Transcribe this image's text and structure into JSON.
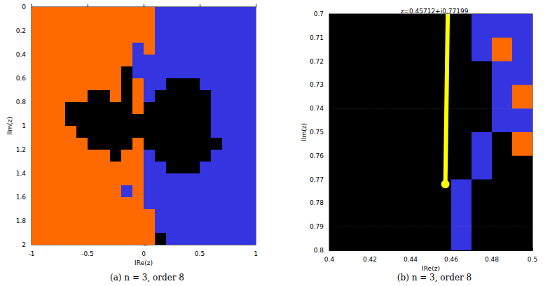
{
  "chart_data": [
    {
      "type": "heatmap",
      "caption": "(a) n = 3, order 8",
      "x_label": "IRe(z)",
      "y_label": "IIm(z)",
      "xlim": [
        -1,
        1
      ],
      "ylim": [
        0,
        2
      ],
      "xticks": [
        -1,
        -0.5,
        0,
        0.5,
        1
      ],
      "yticks": [
        0,
        0.2,
        0.4,
        0.6,
        0.8,
        1,
        1.2,
        1.4,
        1.6,
        1.8,
        2
      ],
      "colors": [
        "#ff6a00",
        "#3434e0",
        "#000000"
      ],
      "cells": {
        "x_edges": [
          -1,
          -0.9,
          -0.8,
          -0.7,
          -0.6,
          -0.5,
          -0.4,
          -0.3,
          -0.2,
          -0.1,
          0,
          0.1,
          0.2,
          0.3,
          0.4,
          0.5,
          0.6,
          0.7,
          0.8,
          0.9,
          1
        ],
        "y_edges": [
          0,
          0.1,
          0.2,
          0.3,
          0.4,
          0.5,
          0.6,
          0.7,
          0.8,
          0.9,
          1,
          1.1,
          1.2,
          1.3,
          1.4,
          1.5,
          1.6,
          1.7,
          1.8,
          1.9,
          2
        ],
        "values": [
          [
            0,
            0,
            0,
            0,
            0,
            0,
            0,
            0,
            0,
            0,
            0,
            1,
            1,
            1,
            1,
            1,
            1,
            1,
            1,
            1
          ],
          [
            0,
            0,
            0,
            0,
            0,
            0,
            0,
            0,
            0,
            0,
            0,
            1,
            1,
            1,
            1,
            1,
            1,
            1,
            1,
            1
          ],
          [
            0,
            0,
            0,
            0,
            0,
            0,
            0,
            0,
            0,
            0,
            0,
            1,
            1,
            1,
            1,
            1,
            1,
            1,
            1,
            1
          ],
          [
            0,
            0,
            0,
            0,
            0,
            0,
            0,
            0,
            0,
            1,
            0,
            1,
            1,
            1,
            1,
            1,
            1,
            1,
            1,
            1
          ],
          [
            0,
            0,
            0,
            0,
            0,
            0,
            0,
            0,
            0,
            1,
            1,
            1,
            1,
            1,
            1,
            1,
            1,
            1,
            1,
            1
          ],
          [
            0,
            0,
            0,
            0,
            0,
            0,
            0,
            0,
            2,
            1,
            1,
            1,
            1,
            1,
            1,
            1,
            1,
            1,
            1,
            1
          ],
          [
            0,
            0,
            0,
            0,
            0,
            0,
            0,
            0,
            2,
            0,
            1,
            1,
            2,
            2,
            2,
            1,
            1,
            1,
            1,
            1
          ],
          [
            0,
            0,
            0,
            0,
            0,
            2,
            2,
            0,
            2,
            0,
            1,
            2,
            2,
            2,
            2,
            2,
            1,
            1,
            1,
            1
          ],
          [
            0,
            0,
            0,
            2,
            2,
            2,
            2,
            2,
            2,
            0,
            2,
            2,
            2,
            2,
            2,
            2,
            1,
            1,
            1,
            1
          ],
          [
            0,
            0,
            0,
            2,
            2,
            2,
            2,
            2,
            2,
            2,
            2,
            2,
            2,
            2,
            2,
            2,
            1,
            1,
            1,
            1
          ],
          [
            0,
            0,
            0,
            0,
            2,
            2,
            2,
            2,
            2,
            2,
            2,
            2,
            2,
            2,
            2,
            2,
            1,
            1,
            1,
            1
          ],
          [
            0,
            0,
            0,
            0,
            0,
            2,
            2,
            2,
            2,
            0,
            2,
            2,
            2,
            2,
            2,
            2,
            2,
            1,
            1,
            1
          ],
          [
            0,
            0,
            0,
            0,
            0,
            0,
            0,
            2,
            0,
            0,
            1,
            2,
            2,
            2,
            2,
            2,
            1,
            1,
            1,
            1
          ],
          [
            0,
            0,
            0,
            0,
            0,
            0,
            0,
            0,
            0,
            0,
            1,
            1,
            2,
            2,
            2,
            1,
            1,
            1,
            1,
            1
          ],
          [
            0,
            0,
            0,
            0,
            0,
            0,
            0,
            0,
            0,
            0,
            1,
            1,
            1,
            1,
            1,
            1,
            1,
            1,
            1,
            1
          ],
          [
            0,
            0,
            0,
            0,
            0,
            0,
            0,
            0,
            1,
            0,
            1,
            1,
            1,
            1,
            1,
            1,
            1,
            1,
            1,
            1
          ],
          [
            0,
            0,
            0,
            0,
            0,
            0,
            0,
            0,
            0,
            0,
            1,
            1,
            1,
            1,
            1,
            1,
            1,
            1,
            1,
            1
          ],
          [
            0,
            0,
            0,
            0,
            0,
            0,
            0,
            0,
            0,
            0,
            0,
            1,
            1,
            1,
            1,
            1,
            1,
            1,
            1,
            1
          ],
          [
            0,
            0,
            0,
            0,
            0,
            0,
            0,
            0,
            0,
            0,
            0,
            1,
            1,
            1,
            1,
            1,
            1,
            1,
            1,
            1
          ],
          [
            0,
            0,
            0,
            0,
            0,
            0,
            0,
            0,
            0,
            0,
            0,
            2,
            1,
            1,
            1,
            1,
            1,
            1,
            1,
            1
          ]
        ]
      }
    },
    {
      "type": "heatmap",
      "caption": "(b) n = 3, order 8",
      "title": "z=0.45712+i0.77199",
      "x_label": "IRe(z)",
      "y_label": "IIm(z)",
      "xlim": [
        0.4,
        0.5
      ],
      "ylim": [
        0.7,
        0.8
      ],
      "xticks": [
        0.4,
        0.42,
        0.44,
        0.46,
        0.48,
        0.5
      ],
      "yticks": [
        0.7,
        0.71,
        0.72,
        0.73,
        0.74,
        0.75,
        0.76,
        0.77,
        0.78,
        0.79,
        0.8
      ],
      "colors": [
        "#ff6a00",
        "#3434e0",
        "#000000"
      ],
      "cells": {
        "x_edges": [
          0.4,
          0.41,
          0.42,
          0.43,
          0.44,
          0.45,
          0.46,
          0.47,
          0.48,
          0.49,
          0.5
        ],
        "y_edges": [
          0.7,
          0.71,
          0.72,
          0.73,
          0.74,
          0.75,
          0.76,
          0.77,
          0.78,
          0.79,
          0.8
        ],
        "values": [
          [
            2,
            2,
            2,
            2,
            2,
            2,
            2,
            1,
            1,
            1
          ],
          [
            2,
            2,
            2,
            2,
            2,
            2,
            2,
            1,
            0,
            1
          ],
          [
            2,
            2,
            2,
            2,
            2,
            2,
            2,
            2,
            1,
            1
          ],
          [
            2,
            2,
            2,
            2,
            2,
            2,
            2,
            2,
            1,
            0
          ],
          [
            2,
            2,
            2,
            2,
            2,
            2,
            2,
            2,
            1,
            1
          ],
          [
            2,
            2,
            2,
            2,
            2,
            2,
            2,
            1,
            2,
            0
          ],
          [
            2,
            2,
            2,
            2,
            2,
            2,
            2,
            1,
            2,
            2
          ],
          [
            2,
            2,
            2,
            2,
            2,
            2,
            1,
            2,
            2,
            2
          ],
          [
            2,
            2,
            2,
            2,
            2,
            2,
            1,
            2,
            2,
            2
          ],
          [
            2,
            2,
            2,
            2,
            2,
            2,
            1,
            2,
            2,
            2
          ]
        ]
      },
      "path": {
        "type": "line",
        "x": [
          0.4583,
          0.45712
        ],
        "y": [
          0.7,
          0.77199
        ],
        "color": "#ffff00",
        "marker": "circle"
      }
    }
  ]
}
